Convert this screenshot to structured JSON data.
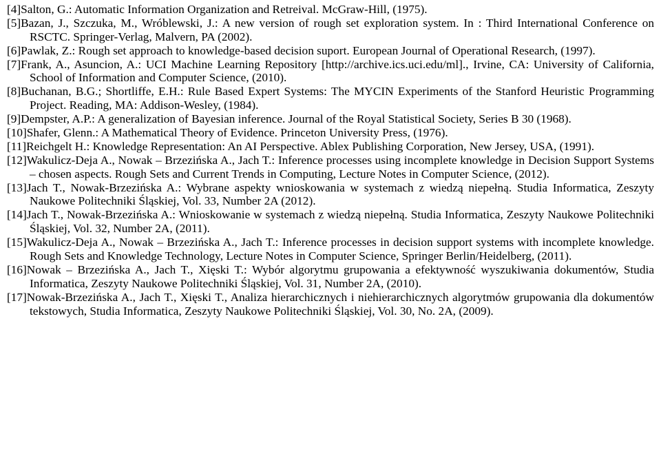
{
  "refs": [
    {
      "n": "[4]",
      "t": "Salton, G.: Automatic Information Organization and Retreival. McGraw-Hill, (1975)."
    },
    {
      "n": "[5]",
      "t": "Bazan, J., Szczuka, M., Wróblewski, J.: A new version of rough set exploration system. In : Third International Conference on RSCTC. Springer-Verlag, Malvern, PA (2002)."
    },
    {
      "n": "[6]",
      "t": "Pawlak, Z.: Rough set approach to knowledge-based decision suport. European Journal of Operational Research, (1997)."
    },
    {
      "n": "[7]",
      "t": "Frank, A., Asuncion, A.: UCI Machine Learning Repository [http://archive.ics.uci.edu/ml]., Irvine, CA: University of California, School of Information and Computer Science, (2010)."
    },
    {
      "n": "[8]",
      "t": "Buchanan, B.G.; Shortliffe, E.H.:  Rule Based Expert Systems: The MYCIN Experiments of the Stanford Heuristic Programming Project. Reading, MA: Addison-Wesley, (1984)."
    },
    {
      "n": "[9]",
      "t": "Dempster, A.P.: A generalization of Bayesian inference.  Journal of the Royal Statistical Society, Series B 30 (1968)."
    },
    {
      "n": "[10]",
      "t": "Shafer, Glenn.: A Mathematical Theory of Evidence.  Princeton University Press, (1976)."
    },
    {
      "n": "[11]",
      "t": "Reichgelt H.: Knowledge Representation: An AI Perspective. Ablex Publishing Corporation, New Jersey, USA, (1991)."
    },
    {
      "n": "[12]",
      "t": "Wakulicz-Deja A., Nowak – Brzezińska A., Jach T.: Inference processes using incomplete knowledge in Decision Support Systems – chosen aspects. Rough Sets and Current Trends in Computing, Lecture Notes in Computer Science, (2012)."
    },
    {
      "n": "[13]",
      "t": "Jach T., Nowak-Brzezińska A.: Wybrane aspekty wnioskowania w systemach z wiedzą niepełną. Studia Informatica, Zeszyty Naukowe Politechniki Śląskiej, Vol. 33, Number 2A (2012)."
    },
    {
      "n": "[14]",
      "t": "Jach T., Nowak-Brzezińska A.: Wnioskowanie w systemach z wiedzą niepełną. Studia Informatica, Zeszyty Naukowe Politechniki Śląskiej, Vol. 32, Number 2A, (2011)."
    },
    {
      "n": "[15]",
      "t": "Wakulicz-Deja A., Nowak – Brzezińska A., Jach T.: Inference processes in decision support systems with incomplete knowledge. Rough Sets and Knowledge Technology, Lecture Notes in Computer Science, Springer Berlin/Heidelberg, (2011)."
    },
    {
      "n": "[16]",
      "t": "Nowak – Brzezińska A., Jach T., Xięski T.: Wybór algorytmu grupowania a efektywność wyszukiwania dokumentów, Studia Informatica, Zeszyty Naukowe Politechniki Śląskiej, Vol. 31, Number 2A, (2010)."
    },
    {
      "n": "[17]",
      "t": "Nowak-Brzezińska A., Jach T., Xięski T., Analiza hierarchicznych i niehierarchicznych algorytmów grupowania dla dokumentów tekstowych, Studia Informatica, Zeszyty Naukowe Politechniki Śląskiej, Vol. 30, No. 2A, (2009)."
    }
  ]
}
